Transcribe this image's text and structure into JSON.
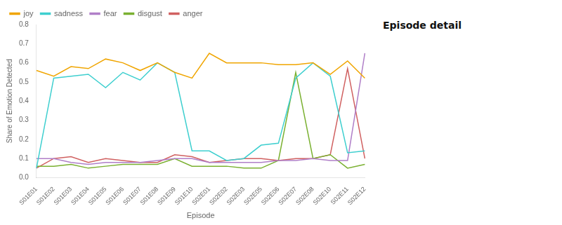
{
  "chart_data": {
    "type": "line",
    "xlabel": "Episode",
    "ylabel": "Share of Emotion Detected",
    "annotations": [
      "Episode detail"
    ],
    "categories": [
      "S01E01",
      "S01E02",
      "S01E03",
      "S01E04",
      "S01E05",
      "S01E06",
      "S01E07",
      "S01E08",
      "S01E09",
      "S01E10",
      "S02E01",
      "S02E02",
      "S02E03",
      "S02E05",
      "S02E06",
      "S02E07",
      "S02E08",
      "S02E10",
      "S02E11",
      "S02E12"
    ],
    "series": [
      {
        "name": "joy",
        "color": "#f0a500",
        "values": [
          0.56,
          0.53,
          0.58,
          0.57,
          0.62,
          0.6,
          0.56,
          0.6,
          0.55,
          0.52,
          0.65,
          0.6,
          0.6,
          0.6,
          0.59,
          0.59,
          0.6,
          0.54,
          0.61,
          0.52
        ]
      },
      {
        "name": "sadness",
        "color": "#3ecfcf",
        "values": [
          0.05,
          0.52,
          0.53,
          0.54,
          0.47,
          0.55,
          0.51,
          0.6,
          0.55,
          0.14,
          0.14,
          0.09,
          0.1,
          0.17,
          0.18,
          0.52,
          0.6,
          0.53,
          0.13,
          0.14
        ]
      },
      {
        "name": "fear",
        "color": "#b07fc8",
        "values": [
          0.1,
          0.1,
          0.08,
          0.07,
          0.08,
          0.08,
          0.08,
          0.09,
          0.1,
          0.1,
          0.08,
          0.08,
          0.08,
          0.08,
          0.09,
          0.09,
          0.1,
          0.09,
          0.09,
          0.65
        ]
      },
      {
        "name": "disgust",
        "color": "#7ab030",
        "values": [
          0.06,
          0.06,
          0.07,
          0.05,
          0.06,
          0.07,
          0.07,
          0.07,
          0.1,
          0.06,
          0.06,
          0.06,
          0.05,
          0.05,
          0.09,
          0.55,
          0.1,
          0.12,
          0.05,
          0.07
        ]
      },
      {
        "name": "anger",
        "color": "#d06060",
        "values": [
          0.05,
          0.1,
          0.11,
          0.08,
          0.1,
          0.09,
          0.08,
          0.08,
          0.12,
          0.11,
          0.08,
          0.09,
          0.1,
          0.1,
          0.09,
          0.1,
          0.1,
          0.12,
          0.57,
          0.1
        ]
      }
    ],
    "ylim": [
      0.0,
      0.8
    ],
    "yticks": [
      {
        "value": 0.0,
        "label": "0.0"
      },
      0.1,
      0.2,
      0.3,
      0.4,
      0.5,
      0.6,
      0.7,
      0.8
    ],
    "grid": false,
    "legend": "top"
  }
}
